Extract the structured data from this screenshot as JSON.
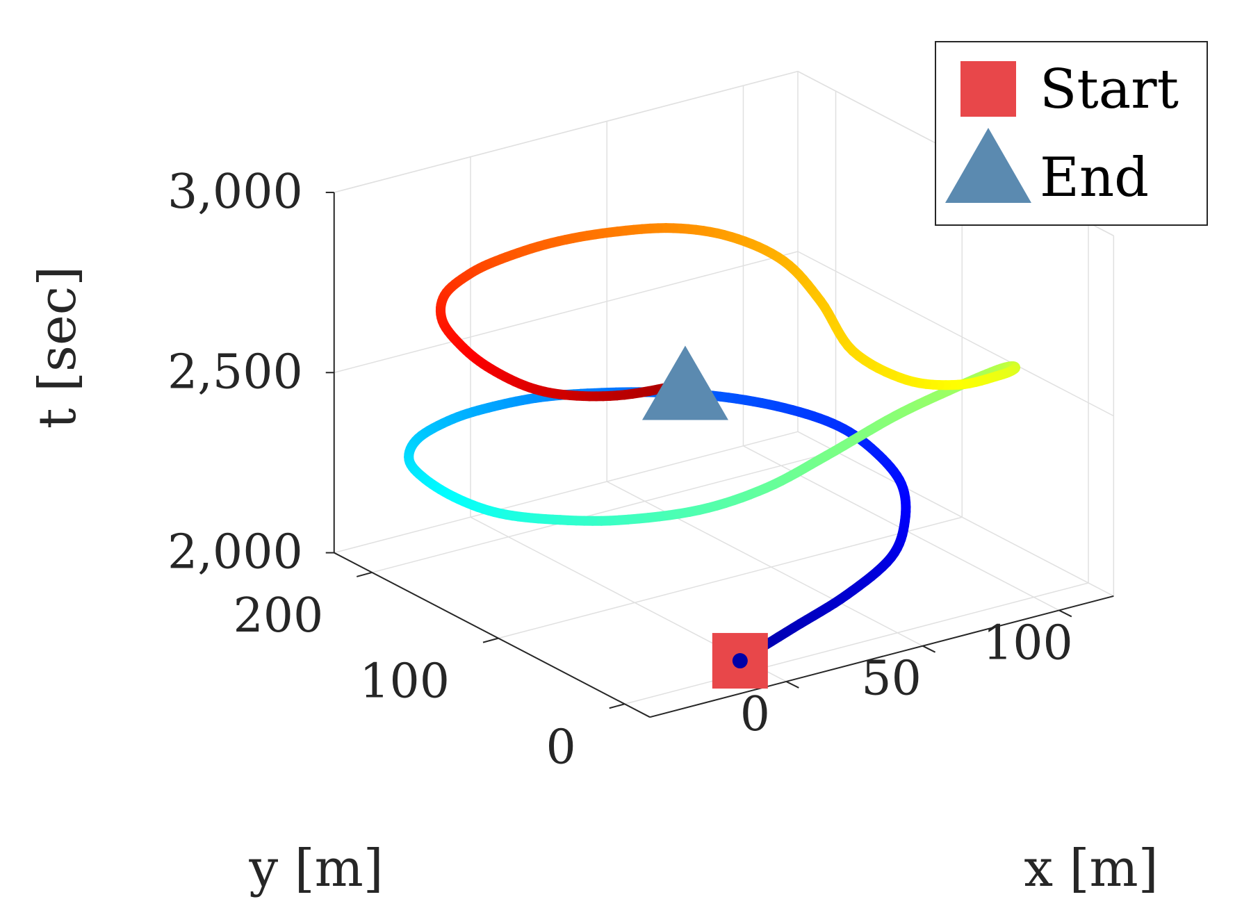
{
  "chart_data": {
    "type": "line3d",
    "xlabel": "x [m]",
    "ylabel": "y [m]",
    "zlabel": "t [sec]",
    "x_ticks": [
      0,
      50,
      100
    ],
    "x_tick_labels": [
      "0",
      "50",
      "100"
    ],
    "y_ticks": [
      0,
      100,
      200
    ],
    "y_tick_labels": [
      "0",
      "100",
      "200"
    ],
    "z_ticks": [
      2000,
      2500,
      3000
    ],
    "z_tick_labels": [
      "2,000",
      "2,500",
      "3,000"
    ],
    "xlim": [
      -50,
      120
    ],
    "ylim": [
      -20,
      230
    ],
    "zlim": [
      2000,
      3000
    ],
    "grid": true,
    "legend_position": "top-right",
    "legend": [
      {
        "label": "Start",
        "marker": "square",
        "color": "#e8474a"
      },
      {
        "label": "End",
        "marker": "triangle",
        "color": "#5b8ab0"
      }
    ],
    "colormap": "jet",
    "trajectory": {
      "x": [
        -10,
        10,
        30,
        50,
        62,
        70,
        72,
        70,
        62,
        50,
        35,
        20,
        5,
        -10,
        -25,
        -40,
        -48,
        -49,
        -46,
        -40,
        -30,
        -15,
        5,
        25,
        45,
        70,
        92,
        108,
        115,
        117,
        113,
        100,
        88,
        80,
        82,
        80,
        70,
        55,
        35,
        15,
        -5,
        -20,
        -35,
        -45,
        -49,
        -48,
        -43,
        -35,
        -20,
        0
      ],
      "y": [
        -5,
        -4,
        -3,
        5,
        20,
        40,
        65,
        90,
        115,
        140,
        160,
        175,
        185,
        190,
        190,
        185,
        175,
        160,
        140,
        120,
        100,
        80,
        60,
        50,
        45,
        45,
        45,
        48,
        50,
        52,
        55,
        60,
        75,
        100,
        130,
        155,
        175,
        188,
        195,
        198,
        195,
        188,
        175,
        155,
        130,
        110,
        90,
        75,
        65,
        60
      ],
      "t": [
        2050,
        2100,
        2150,
        2200,
        2250,
        2300,
        2340,
        2370,
        2390,
        2400,
        2405,
        2405,
        2405,
        2400,
        2395,
        2380,
        2355,
        2330,
        2305,
        2290,
        2290,
        2295,
        2320,
        2360,
        2420,
        2480,
        2515,
        2525,
        2520,
        2505,
        2490,
        2480,
        2490,
        2540,
        2620,
        2690,
        2740,
        2770,
        2785,
        2790,
        2790,
        2790,
        2785,
        2770,
        2750,
        2725,
        2700,
        2690,
        2680,
        2680
      ]
    },
    "start_point": {
      "x": -10,
      "y": -5,
      "t": 2050
    },
    "end_point": {
      "x": 0,
      "y": 60,
      "t": 2680
    }
  }
}
